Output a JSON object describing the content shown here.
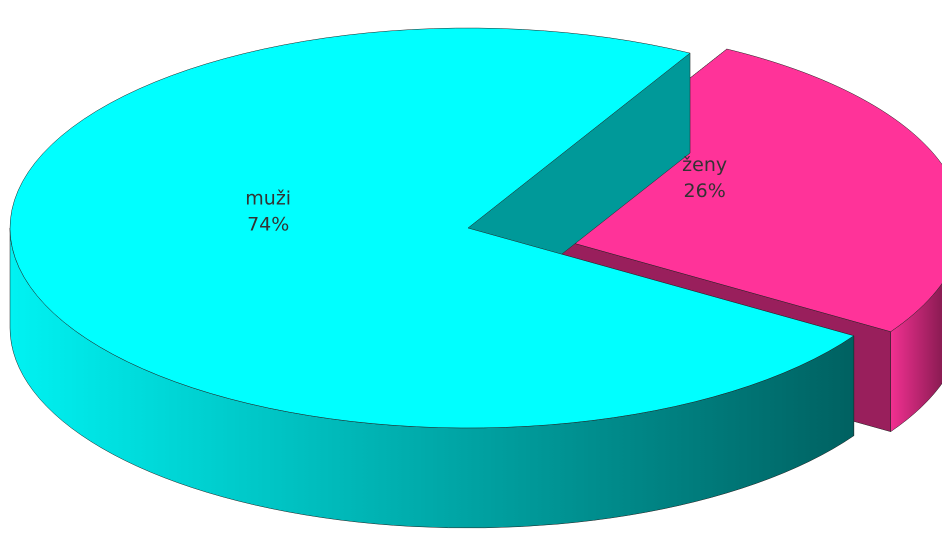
{
  "chart_data": {
    "type": "pie",
    "categories": [
      "muži",
      "ženy"
    ],
    "values": [
      74,
      26
    ],
    "value_labels": [
      "74%",
      "26%"
    ],
    "colors": [
      "#00ffff",
      "#ff3399"
    ]
  }
}
